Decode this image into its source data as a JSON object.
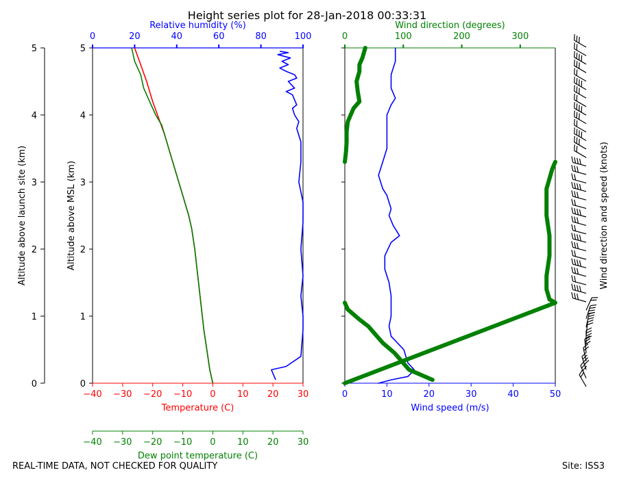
{
  "colors": {
    "temperature": "#ff0000",
    "dewpoint": "#008000",
    "humidity": "#0000ff",
    "wind_speed": "#0000ff",
    "wind_direction": "#008000",
    "axis": "#000000"
  },
  "footer": {
    "left": "REAL-TIME DATA, NOT CHECKED FOR QUALITY",
    "right": "Site: ISS3"
  },
  "chart_data": [
    {
      "type": "line",
      "title": "Height series plot for 28-Jan-2018 00:33:31",
      "outer_axis": {
        "ylabel": "Altitude above launch site (km)",
        "ylim": [
          0,
          5
        ],
        "ticks": [
          0,
          1,
          2,
          3,
          4,
          5
        ]
      },
      "ylabel": "Altitude above MSL (km)",
      "ylim": [
        0,
        5
      ],
      "yticks": [
        0,
        1,
        2,
        3,
        4,
        5
      ],
      "x_axes": [
        {
          "id": "temperature",
          "label": "Temperature (C)",
          "lim": [
            -40,
            30
          ],
          "ticks": [
            -40,
            -30,
            -20,
            -10,
            0,
            10,
            20,
            30
          ],
          "position": "bottom"
        },
        {
          "id": "humidity",
          "label": "Relative humidity (%)",
          "lim": [
            0,
            100
          ],
          "ticks": [
            0,
            20,
            40,
            60,
            80,
            100
          ],
          "position": "top"
        },
        {
          "id": "dewpoint",
          "label": "Dew point temperature (C)",
          "lim": [
            -40,
            30
          ],
          "ticks": [
            -40,
            -30,
            -20,
            -10,
            0,
            10,
            20,
            30
          ],
          "position": "bottom-offset"
        }
      ],
      "series": [
        {
          "name": "Temperature",
          "axis": "temperature",
          "x": [
            0,
            -1,
            -2,
            -3,
            -4,
            -5,
            -6,
            -7,
            -8,
            -10,
            -12,
            -14,
            -16,
            -18,
            -20,
            -22,
            -24,
            -26
          ],
          "y": [
            0,
            0.2,
            0.5,
            0.8,
            1.2,
            1.6,
            2.0,
            2.3,
            2.5,
            2.8,
            3.1,
            3.4,
            3.7,
            3.95,
            4.2,
            4.5,
            4.75,
            5.0
          ]
        },
        {
          "name": "Dew point",
          "axis": "dewpoint",
          "x": [
            0,
            -1,
            -2,
            -3,
            -4,
            -5,
            -6,
            -7,
            -8,
            -10,
            -12,
            -14,
            -16,
            -17,
            -19,
            -21,
            -23,
            -24,
            -26,
            -27
          ],
          "y": [
            0,
            0.2,
            0.5,
            0.8,
            1.2,
            1.6,
            2.0,
            2.3,
            2.5,
            2.8,
            3.1,
            3.4,
            3.7,
            3.85,
            4.0,
            4.2,
            4.4,
            4.6,
            4.8,
            5.0
          ]
        },
        {
          "name": "Relative humidity",
          "axis": "humidity",
          "x": [
            87,
            85,
            92,
            99,
            100,
            100,
            99,
            100,
            99,
            100,
            100,
            98,
            99,
            99,
            97,
            98,
            96,
            95,
            97,
            95,
            92,
            96,
            93,
            97,
            96,
            92,
            89,
            93,
            90,
            94,
            88,
            93,
            89
          ],
          "y": [
            0.05,
            0.2,
            0.25,
            0.4,
            0.8,
            1.0,
            1.3,
            1.6,
            2.0,
            2.4,
            2.7,
            3.0,
            3.3,
            3.6,
            3.8,
            3.9,
            4.0,
            4.1,
            4.15,
            4.3,
            4.35,
            4.4,
            4.5,
            4.55,
            4.6,
            4.65,
            4.7,
            4.75,
            4.8,
            4.85,
            4.9,
            4.93,
            4.95
          ]
        }
      ]
    },
    {
      "type": "line",
      "ylim": [
        0,
        5
      ],
      "right_label": "Wind direction and speed (knots)",
      "x_axes": [
        {
          "id": "wind_speed",
          "label": "Wind speed (m/s)",
          "lim": [
            0,
            50
          ],
          "ticks": [
            0,
            10,
            20,
            30,
            40,
            50
          ],
          "position": "bottom"
        },
        {
          "id": "wind_direction",
          "label": "Wind direction (degrees)",
          "lim": [
            0,
            360
          ],
          "ticks": [
            0,
            100,
            200,
            300
          ],
          "position": "top"
        }
      ],
      "series": [
        {
          "name": "Wind speed",
          "axis": "wind_speed",
          "x": [
            8,
            11,
            15,
            16.5,
            15,
            14,
            12.5,
            11,
            10.5,
            11,
            11,
            10.5,
            9.5,
            9.5,
            11,
            13,
            11.5,
            10.5,
            11,
            10,
            9,
            8,
            9,
            10,
            10,
            10,
            10,
            11,
            12,
            11,
            11,
            12,
            12
          ],
          "y": [
            0,
            0.05,
            0.1,
            0.2,
            0.3,
            0.5,
            0.6,
            0.7,
            0.85,
            1.0,
            1.3,
            1.5,
            1.7,
            1.9,
            2.1,
            2.2,
            2.35,
            2.5,
            2.6,
            2.8,
            2.9,
            3.1,
            3.3,
            3.5,
            3.7,
            3.9,
            4.0,
            4.15,
            4.25,
            4.4,
            4.6,
            4.8,
            5.0
          ]
        },
        {
          "name": "Wind direction",
          "axis": "wind_direction",
          "x": [
            0,
            360,
            350,
            345,
            345,
            350,
            350,
            345,
            345,
            345,
            350,
            355,
            360
          ],
          "y": [
            0,
            1.2,
            1.25,
            1.4,
            1.6,
            1.9,
            2.2,
            2.5,
            2.7,
            2.9,
            3.05,
            3.2,
            3.3
          ]
        },
        {
          "name": "Wind direction (low)",
          "axis": "wind_direction",
          "x": [
            0,
            5,
            25,
            40,
            50,
            65,
            85,
            100,
            110,
            150
          ],
          "y": [
            1.2,
            1.1,
            0.95,
            0.85,
            0.75,
            0.6,
            0.45,
            0.3,
            0.2,
            0.05
          ]
        },
        {
          "name": "Wind direction (upper)",
          "axis": "wind_direction",
          "x": [
            0,
            2,
            3,
            3,
            5,
            10,
            15,
            25,
            22,
            20,
            25,
            25,
            30,
            35
          ],
          "y": [
            3.3,
            3.45,
            3.6,
            3.75,
            3.9,
            4.0,
            4.1,
            4.2,
            4.35,
            4.5,
            4.65,
            4.75,
            4.85,
            5.0
          ]
        }
      ]
    }
  ]
}
